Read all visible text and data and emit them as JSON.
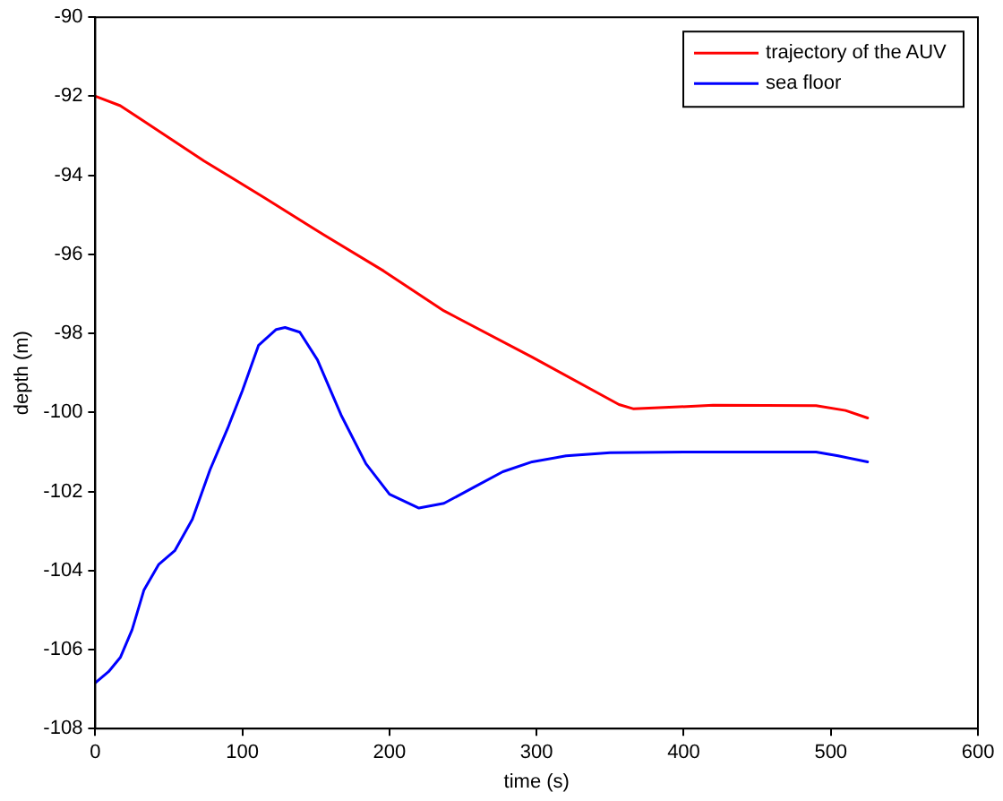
{
  "chart_data": {
    "type": "line",
    "xlabel": "time (s)",
    "ylabel": "depth (m)",
    "xlim": [
      0,
      600
    ],
    "xticks": [
      0,
      100,
      200,
      300,
      400,
      500,
      600
    ],
    "ylim": [
      -108,
      -90
    ],
    "yticks": [
      -108,
      -106,
      -104,
      -102,
      -100,
      -98,
      -96,
      -94,
      -92,
      -90
    ],
    "grid": false,
    "legend": "top right",
    "marker": "none",
    "line_style": "solid",
    "series": [
      {
        "name": "trajectory of the AUV",
        "color": "#ff0000",
        "x": [
          0,
          17,
          33,
          74,
          115,
          155,
          196,
          237,
          297,
          356,
          366,
          420,
          490,
          510,
          525
        ],
        "values": [
          -92,
          -92.24,
          -92.63,
          -93.64,
          -94.57,
          -95.5,
          -96.42,
          -97.43,
          -98.6,
          -99.8,
          -99.91,
          -99.82,
          -99.83,
          -99.95,
          -100.14
        ]
      },
      {
        "name": "sea floor",
        "color": "#0000ff",
        "x": [
          0,
          9,
          17,
          25,
          33,
          43,
          54,
          66,
          78,
          90,
          100,
          111,
          123,
          129,
          139,
          151,
          167,
          184,
          200,
          220,
          237,
          257,
          277,
          297,
          320,
          350,
          400,
          490,
          505,
          525
        ],
        "values": [
          -106.84,
          -106.56,
          -106.2,
          -105.5,
          -104.5,
          -103.85,
          -103.5,
          -102.7,
          -101.45,
          -100.4,
          -99.45,
          -98.3,
          -97.9,
          -97.85,
          -97.97,
          -98.67,
          -100.06,
          -101.3,
          -102.07,
          -102.42,
          -102.3,
          -101.9,
          -101.5,
          -101.25,
          -101.1,
          -101.02,
          -101,
          -101,
          -101.1,
          -101.25
        ]
      }
    ]
  }
}
